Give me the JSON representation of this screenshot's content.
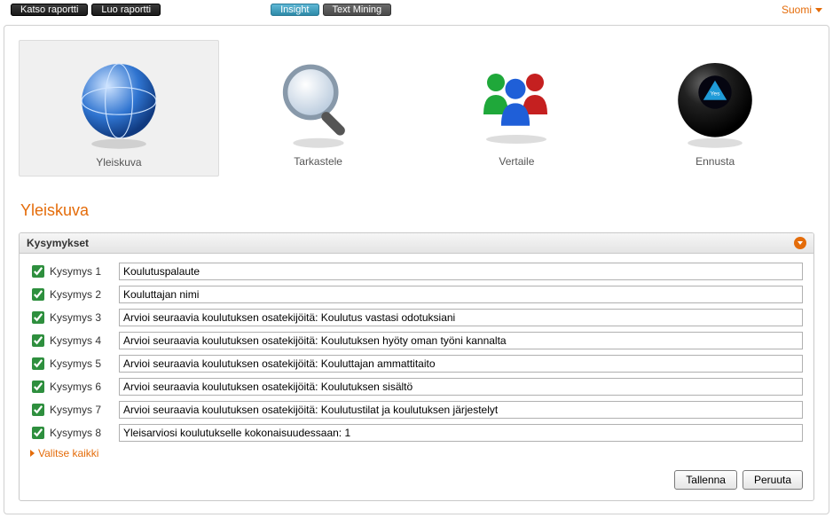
{
  "topbar": {
    "tabs_left": [
      {
        "label": "Katso raportti",
        "style": "tab-dark"
      },
      {
        "label": "Luo raportti",
        "style": "tab-dark"
      }
    ],
    "tabs_mid": [
      {
        "label": "Insight",
        "style": "tab-blue"
      },
      {
        "label": "Text Mining",
        "style": "tab-grey"
      }
    ],
    "language": "Suomi"
  },
  "modes": [
    {
      "key": "yleiskuva",
      "label": "Yleiskuva",
      "selected": true
    },
    {
      "key": "tarkastele",
      "label": "Tarkastele",
      "selected": false
    },
    {
      "key": "vertaile",
      "label": "Vertaile",
      "selected": false
    },
    {
      "key": "ennusta",
      "label": "Ennusta",
      "selected": false
    }
  ],
  "section": {
    "title": "Yleiskuva",
    "box_title": "Kysymykset",
    "select_all": "Valitse kaikki",
    "questions": [
      {
        "label": "Kysymys 1",
        "checked": true,
        "value": "Koulutuspalaute"
      },
      {
        "label": "Kysymys 2",
        "checked": true,
        "value": "Kouluttajan nimi"
      },
      {
        "label": "Kysymys 3",
        "checked": true,
        "value": "Arvioi seuraavia koulutuksen osatekijöitä: Koulutus vastasi odotuksiani"
      },
      {
        "label": "Kysymys 4",
        "checked": true,
        "value": "Arvioi seuraavia koulutuksen osatekijöitä: Koulutuksen hyöty oman työni kannalta"
      },
      {
        "label": "Kysymys 5",
        "checked": true,
        "value": "Arvioi seuraavia koulutuksen osatekijöitä: Kouluttajan ammattitaito"
      },
      {
        "label": "Kysymys 6",
        "checked": true,
        "value": "Arvioi seuraavia koulutuksen osatekijöitä: Koulutuksen sisältö"
      },
      {
        "label": "Kysymys 7",
        "checked": true,
        "value": "Arvioi seuraavia koulutuksen osatekijöitä: Koulutustilat ja koulutuksen järjestelyt"
      },
      {
        "label": "Kysymys 8",
        "checked": true,
        "value": "Yleisarviosi koulutukselle kokonaisuudessaan: 1"
      }
    ],
    "actions": {
      "save": "Tallenna",
      "cancel": "Peruuta"
    }
  },
  "colors": {
    "accent": "#e46c0a",
    "globe": "#2f74d0",
    "mag_handle": "#555555",
    "person_green": "#1fa83a",
    "person_blue": "#1f5fd8",
    "person_red": "#c52020",
    "ball": "#111111",
    "ball_tri": "#1f9bd8"
  }
}
